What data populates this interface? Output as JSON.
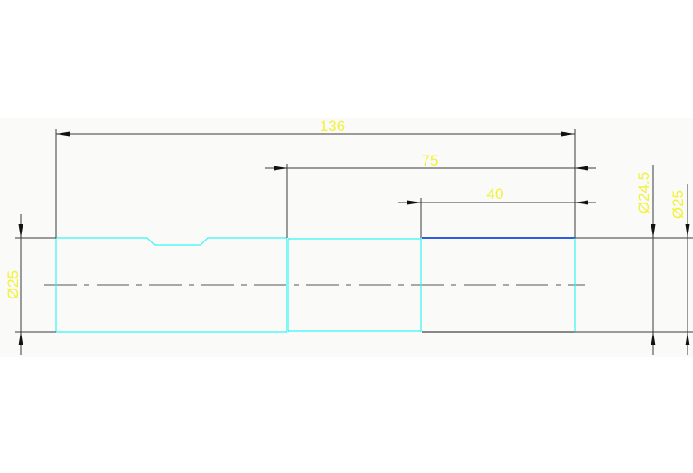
{
  "drawing": {
    "dimensions": {
      "overall_length": "136",
      "length_75": "75",
      "length_40": "40",
      "left_diameter": "Ø25",
      "right_diameter_inner": "Ø24.5",
      "right_diameter_outer": "Ø25"
    },
    "colors": {
      "background": "#fafbf9",
      "part_outline": "#33f5f5",
      "highlighted_edge": "#2f5de0",
      "dimension_text": "#f2f23a",
      "dimension_lines": "#3a3a3a"
    }
  }
}
